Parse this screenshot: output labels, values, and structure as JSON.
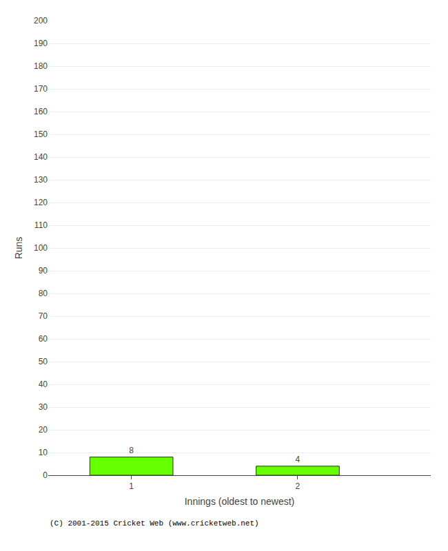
{
  "chart_data": {
    "type": "bar",
    "x": [
      1,
      2
    ],
    "values": [
      8,
      4
    ],
    "color": "#66ff00",
    "xlabel": "Innings (oldest to newest)",
    "ylabel": "Runs",
    "xlim": [
      0.5,
      2.8
    ],
    "xticks": [
      1,
      2
    ],
    "ylim": [
      0,
      200
    ],
    "yticks": [
      0,
      10,
      20,
      30,
      40,
      50,
      60,
      70,
      80,
      90,
      100,
      110,
      120,
      130,
      140,
      150,
      160,
      170,
      180,
      190,
      200
    ],
    "grid": "y",
    "data_labels": true,
    "annotations": [
      "(C) 2001-2015 Cricket Web (www.cricketweb.net)"
    ]
  }
}
